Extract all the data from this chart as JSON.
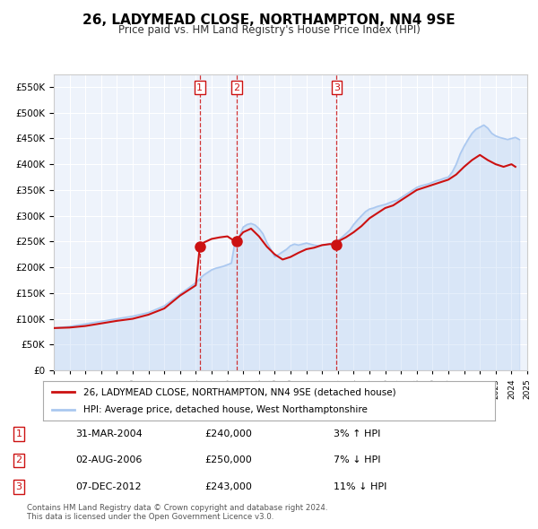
{
  "title": "26, LADYMEAD CLOSE, NORTHAMPTON, NN4 9SE",
  "subtitle": "Price paid vs. HM Land Registry's House Price Index (HPI)",
  "title_fontsize": 12,
  "subtitle_fontsize": 9.5,
  "background_color": "#ffffff",
  "plot_bg_color": "#eef3fb",
  "grid_color": "#ffffff",
  "hpi_line_color": "#aac8f0",
  "price_line_color": "#cc1111",
  "ylim": [
    0,
    575000
  ],
  "yticks": [
    0,
    50000,
    100000,
    150000,
    200000,
    250000,
    300000,
    350000,
    400000,
    450000,
    500000,
    550000
  ],
  "xlabel": "",
  "ylabel": "",
  "legend_label_price": "26, LADYMEAD CLOSE, NORTHAMPTON, NN4 9SE (detached house)",
  "legend_label_hpi": "HPI: Average price, detached house, West Northamptonshire",
  "transaction_points": [
    {
      "label": "1",
      "year": 2004.25,
      "price": 240000,
      "marker_color": "#cc1111"
    },
    {
      "label": "2",
      "year": 2006.58,
      "price": 250000,
      "marker_color": "#cc1111"
    },
    {
      "label": "3",
      "year": 2012.92,
      "price": 243000,
      "marker_color": "#cc1111"
    }
  ],
  "vline_color": "#cc1111",
  "vline_style": "--",
  "table_rows": [
    {
      "num": "1",
      "date": "31-MAR-2004",
      "price": "£240,000",
      "pct": "3% ↑ HPI"
    },
    {
      "num": "2",
      "date": "02-AUG-2006",
      "price": "£250,000",
      "pct": "7% ↓ HPI"
    },
    {
      "num": "3",
      "date": "07-DEC-2012",
      "price": "£243,000",
      "pct": "11% ↓ HPI"
    }
  ],
  "footer": "Contains HM Land Registry data © Crown copyright and database right 2024.\nThis data is licensed under the Open Government Licence v3.0.",
  "hpi_data_years": [
    1995,
    1996,
    1997,
    1998,
    1999,
    2000,
    2001,
    2002,
    2003,
    2004,
    2004.25,
    2004.5,
    2004.75,
    2005,
    2005.25,
    2005.5,
    2005.75,
    2006,
    2006.25,
    2006.5,
    2006.75,
    2007,
    2007.25,
    2007.5,
    2007.75,
    2008,
    2008.25,
    2008.5,
    2008.75,
    2009,
    2009.25,
    2009.5,
    2009.75,
    2010,
    2010.25,
    2010.5,
    2010.75,
    2011,
    2011.25,
    2011.5,
    2011.75,
    2012,
    2012.25,
    2012.5,
    2012.75,
    2013,
    2013.25,
    2013.5,
    2013.75,
    2014,
    2014.25,
    2014.5,
    2014.75,
    2015,
    2015.25,
    2015.5,
    2015.75,
    2016,
    2016.25,
    2016.5,
    2016.75,
    2017,
    2017.25,
    2017.5,
    2017.75,
    2018,
    2018.25,
    2018.5,
    2018.75,
    2019,
    2019.25,
    2019.5,
    2019.75,
    2020,
    2020.25,
    2020.5,
    2020.75,
    2021,
    2021.25,
    2021.5,
    2021.75,
    2022,
    2022.25,
    2022.5,
    2022.75,
    2023,
    2023.25,
    2023.5,
    2023.75,
    2024,
    2024.25,
    2024.5
  ],
  "hpi_data_values": [
    82000,
    85000,
    90000,
    95000,
    100000,
    105000,
    112000,
    125000,
    148000,
    170000,
    178000,
    185000,
    190000,
    195000,
    198000,
    200000,
    202000,
    205000,
    208000,
    253000,
    260000,
    278000,
    283000,
    285000,
    282000,
    275000,
    265000,
    248000,
    235000,
    220000,
    225000,
    230000,
    235000,
    242000,
    245000,
    243000,
    245000,
    247000,
    245000,
    243000,
    242000,
    243000,
    244000,
    246000,
    248000,
    252000,
    258000,
    265000,
    272000,
    283000,
    292000,
    300000,
    308000,
    313000,
    315000,
    318000,
    320000,
    322000,
    325000,
    328000,
    330000,
    335000,
    340000,
    345000,
    350000,
    355000,
    358000,
    360000,
    362000,
    365000,
    368000,
    370000,
    373000,
    375000,
    385000,
    400000,
    420000,
    435000,
    448000,
    460000,
    468000,
    472000,
    476000,
    470000,
    460000,
    455000,
    452000,
    450000,
    448000,
    450000,
    452000,
    448000
  ],
  "price_data_years": [
    1995,
    1996,
    1997,
    1998,
    1999,
    2000,
    2001,
    2002,
    2003,
    2004,
    2004.25,
    2004.5,
    2005,
    2005.5,
    2006,
    2006.5,
    2007,
    2007.5,
    2008,
    2008.5,
    2009,
    2009.5,
    2010,
    2010.5,
    2011,
    2011.5,
    2012,
    2012.5,
    2012.92,
    2013,
    2013.5,
    2014,
    2014.5,
    2015,
    2015.5,
    2016,
    2016.5,
    2017,
    2017.5,
    2018,
    2018.5,
    2019,
    2019.5,
    2020,
    2020.5,
    2021,
    2021.5,
    2022,
    2022.5,
    2023,
    2023.5,
    2024,
    2024.25
  ],
  "price_data_values": [
    82000,
    83000,
    86000,
    91000,
    96000,
    100000,
    108000,
    120000,
    145000,
    165000,
    240000,
    248000,
    255000,
    258000,
    260000,
    250000,
    268000,
    275000,
    260000,
    240000,
    225000,
    215000,
    220000,
    228000,
    235000,
    238000,
    243000,
    245000,
    243000,
    250000,
    258000,
    268000,
    280000,
    295000,
    305000,
    315000,
    320000,
    330000,
    340000,
    350000,
    355000,
    360000,
    365000,
    370000,
    380000,
    395000,
    408000,
    418000,
    408000,
    400000,
    395000,
    400000,
    395000
  ]
}
